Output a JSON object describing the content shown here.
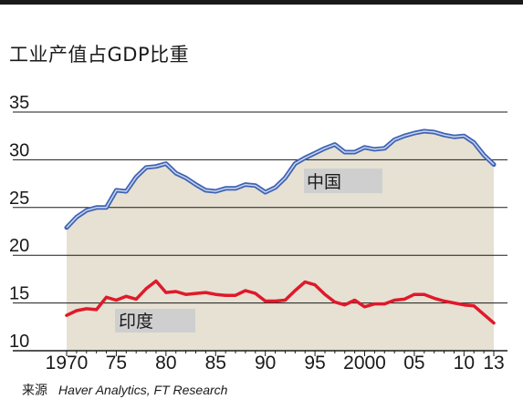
{
  "title": "工业产值占GDP比重",
  "source": {
    "label": "来源",
    "text": "Haver Analytics, FT Research"
  },
  "colors": {
    "china": "#3f63b3",
    "india": "#e0192a",
    "area": "#e6e1d3",
    "grid": "#1a1a1a",
    "label_bg": "#cfcfcf"
  },
  "chart_data": {
    "type": "line",
    "title": "工业产值占GDP比重",
    "xlabel": "",
    "ylabel": "",
    "xlim": [
      1970,
      2013
    ],
    "ylim": [
      10,
      35
    ],
    "y_ticks": [
      10,
      15,
      20,
      25,
      30,
      35
    ],
    "x_ticks": [
      {
        "value": 1970,
        "label": "1970"
      },
      {
        "value": 1975,
        "label": "75"
      },
      {
        "value": 1980,
        "label": "80"
      },
      {
        "value": 1985,
        "label": "85"
      },
      {
        "value": 1990,
        "label": "90"
      },
      {
        "value": 1995,
        "label": "95"
      },
      {
        "value": 2000,
        "label": "2000"
      },
      {
        "value": 2005,
        "label": "05"
      },
      {
        "value": 2010,
        "label": "10"
      },
      {
        "value": 2013,
        "label": "13"
      }
    ],
    "grid": true,
    "series": [
      {
        "name": "中国",
        "x": [
          1970,
          1971,
          1972,
          1973,
          1974,
          1975,
          1976,
          1977,
          1978,
          1979,
          1980,
          1981,
          1982,
          1983,
          1984,
          1985,
          1986,
          1987,
          1988,
          1989,
          1990,
          1991,
          1992,
          1993,
          1994,
          1995,
          1996,
          1997,
          1998,
          1999,
          2000,
          2001,
          2002,
          2003,
          2004,
          2005,
          2006,
          2007,
          2008,
          2009,
          2010,
          2011,
          2012,
          2013
        ],
        "values": [
          22.9,
          24.0,
          24.7,
          25.0,
          25.0,
          26.8,
          26.7,
          28.2,
          29.2,
          29.3,
          29.6,
          28.6,
          28.1,
          27.4,
          26.8,
          26.7,
          27.0,
          27.0,
          27.4,
          27.3,
          26.6,
          27.1,
          28.1,
          29.6,
          30.2,
          30.7,
          31.2,
          31.6,
          30.8,
          30.8,
          31.3,
          31.1,
          31.2,
          32.1,
          32.5,
          32.8,
          33.0,
          32.9,
          32.6,
          32.4,
          32.5,
          31.8,
          30.5,
          29.5
        ]
      },
      {
        "name": "印度",
        "x": [
          1970,
          1971,
          1972,
          1973,
          1974,
          1975,
          1976,
          1977,
          1978,
          1979,
          1980,
          1981,
          1982,
          1983,
          1984,
          1985,
          1986,
          1987,
          1988,
          1989,
          1990,
          1991,
          1992,
          1993,
          1994,
          1995,
          1996,
          1997,
          1998,
          1999,
          2000,
          2001,
          2002,
          2003,
          2004,
          2005,
          2006,
          2007,
          2008,
          2009,
          2010,
          2011,
          2012,
          2013
        ],
        "values": [
          13.7,
          14.2,
          14.4,
          14.3,
          15.6,
          15.3,
          15.7,
          15.4,
          16.5,
          17.3,
          16.1,
          16.2,
          15.9,
          16.0,
          16.1,
          15.9,
          15.8,
          15.8,
          16.3,
          16.0,
          15.2,
          15.2,
          15.3,
          16.3,
          17.2,
          16.9,
          15.9,
          15.1,
          14.8,
          15.3,
          14.6,
          14.9,
          14.9,
          15.3,
          15.4,
          15.9,
          15.9,
          15.5,
          15.2,
          15.0,
          14.8,
          14.7,
          13.8,
          12.9
        ]
      }
    ]
  }
}
